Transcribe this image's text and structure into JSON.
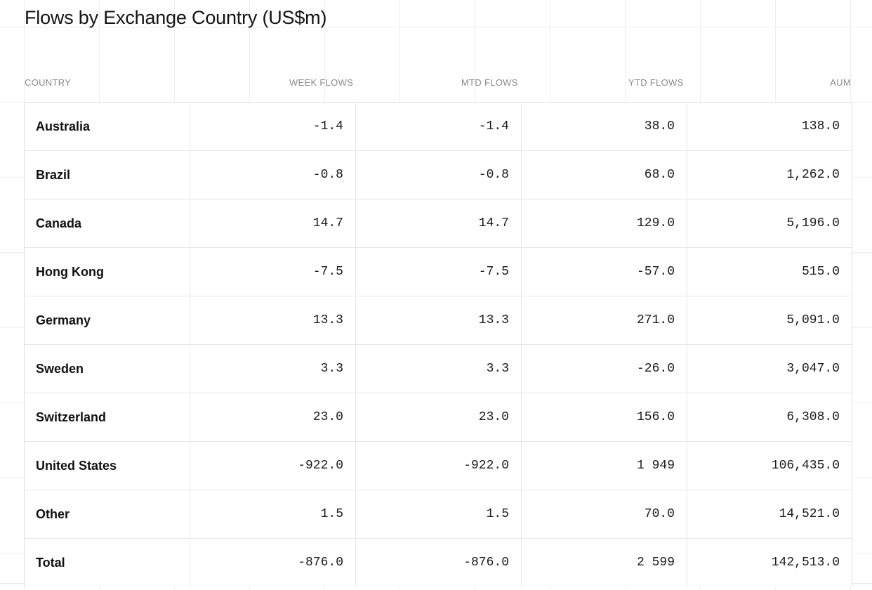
{
  "title": "Flows by Exchange Country (US$m)",
  "columns": {
    "country": "COUNTRY",
    "week": "WEEK FLOWS",
    "mtd": "MTD FLOWS",
    "ytd": "YTD FLOWS",
    "aum": "AUM"
  },
  "rows": [
    {
      "country": "Australia",
      "week": "-1.4",
      "mtd": "-1.4",
      "ytd": "38.0",
      "aum": "138.0"
    },
    {
      "country": "Brazil",
      "week": "-0.8",
      "mtd": "-0.8",
      "ytd": "68.0",
      "aum": "1,262.0"
    },
    {
      "country": "Canada",
      "week": "14.7",
      "mtd": "14.7",
      "ytd": "129.0",
      "aum": "5,196.0"
    },
    {
      "country": "Hong Kong",
      "week": "-7.5",
      "mtd": "-7.5",
      "ytd": "-57.0",
      "aum": "515.0"
    },
    {
      "country": "Germany",
      "week": "13.3",
      "mtd": "13.3",
      "ytd": "271.0",
      "aum": "5,091.0"
    },
    {
      "country": "Sweden",
      "week": "3.3",
      "mtd": "3.3",
      "ytd": "-26.0",
      "aum": "3,047.0"
    },
    {
      "country": "Switzerland",
      "week": "23.0",
      "mtd": "23.0",
      "ytd": "156.0",
      "aum": "6,308.0"
    },
    {
      "country": "United States",
      "week": "-922.0",
      "mtd": "-922.0",
      "ytd": "1 949",
      "aum": "106,435.0"
    },
    {
      "country": "Other",
      "week": "1.5",
      "mtd": "1.5",
      "ytd": "70.0",
      "aum": "14,521.0"
    },
    {
      "country": "Total",
      "week": "-876.0",
      "mtd": "-876.0",
      "ytd": "2 599",
      "aum": "142,513.0"
    }
  ]
}
